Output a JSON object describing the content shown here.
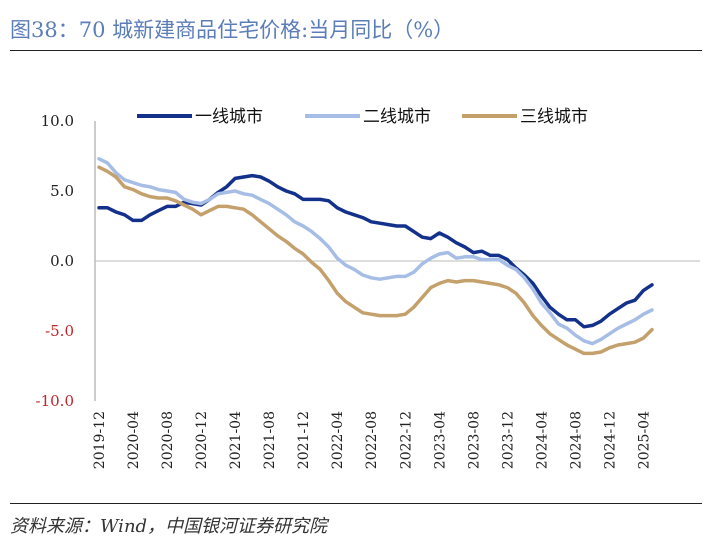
{
  "figure": {
    "title": "图38：70 城新建商品住宅价格:当月同比（%）",
    "source": "资料来源：Wind，中国银河证券研究院"
  },
  "colors": {
    "tier1": "#13318a",
    "tier2": "#a6bde6",
    "tier3": "#c4a06c",
    "negative_tick": "#c0262a"
  },
  "chart_data": {
    "type": "line",
    "ylim": [
      -10,
      10
    ],
    "yticks": [
      "10.0",
      "5.0",
      "0.0",
      "-5.0",
      "-10.0"
    ],
    "ytick_values": [
      10,
      5,
      0,
      -5,
      -10
    ],
    "xticks": [
      "2019-12",
      "2020-04",
      "2020-08",
      "2020-12",
      "2021-04",
      "2021-08",
      "2021-12",
      "2022-04",
      "2022-08",
      "2022-12",
      "2023-04",
      "2023-08",
      "2023-12",
      "2024-04",
      "2024-08",
      "2024-12",
      "2025-04"
    ],
    "legend_position": "top",
    "grid": false,
    "x": [
      "2019-12",
      "2020-01",
      "2020-02",
      "2020-03",
      "2020-04",
      "2020-05",
      "2020-06",
      "2020-07",
      "2020-08",
      "2020-09",
      "2020-10",
      "2020-11",
      "2020-12",
      "2021-01",
      "2021-02",
      "2021-03",
      "2021-04",
      "2021-05",
      "2021-06",
      "2021-07",
      "2021-08",
      "2021-09",
      "2021-10",
      "2021-11",
      "2021-12",
      "2022-01",
      "2022-02",
      "2022-03",
      "2022-04",
      "2022-05",
      "2022-06",
      "2022-07",
      "2022-08",
      "2022-09",
      "2022-10",
      "2022-11",
      "2022-12",
      "2023-01",
      "2023-02",
      "2023-03",
      "2023-04",
      "2023-05",
      "2023-06",
      "2023-07",
      "2023-08",
      "2023-09",
      "2023-10",
      "2023-11",
      "2023-12",
      "2024-01",
      "2024-02",
      "2024-03",
      "2024-04",
      "2024-05",
      "2024-06",
      "2024-07",
      "2024-08",
      "2024-09",
      "2024-10",
      "2024-11",
      "2024-12",
      "2025-01",
      "2025-02",
      "2025-03",
      "2025-04",
      "2025-05"
    ],
    "series": [
      {
        "name": "一线城市",
        "color": "#13318a",
        "values": [
          3.8,
          3.8,
          3.5,
          3.3,
          2.9,
          2.9,
          3.3,
          3.6,
          3.9,
          3.9,
          4.2,
          4.1,
          4.0,
          4.4,
          4.9,
          5.3,
          5.9,
          6.0,
          6.1,
          6.0,
          5.7,
          5.3,
          5.0,
          4.8,
          4.4,
          4.4,
          4.4,
          4.3,
          3.8,
          3.5,
          3.3,
          3.1,
          2.8,
          2.7,
          2.6,
          2.5,
          2.5,
          2.1,
          1.7,
          1.6,
          2.0,
          1.7,
          1.3,
          1.0,
          0.6,
          0.7,
          0.4,
          0.4,
          0.1,
          -0.5,
          -1.0,
          -1.6,
          -2.5,
          -3.3,
          -3.8,
          -4.2,
          -4.2,
          -4.7,
          -4.6,
          -4.3,
          -3.8,
          -3.4,
          -3.0,
          -2.8,
          -2.1,
          -1.7
        ]
      },
      {
        "name": "二线城市",
        "color": "#a6bde6",
        "values": [
          7.3,
          7.0,
          6.3,
          5.8,
          5.6,
          5.4,
          5.3,
          5.1,
          5.0,
          4.9,
          4.4,
          4.2,
          4.1,
          4.4,
          4.8,
          4.9,
          5.0,
          4.8,
          4.7,
          4.4,
          4.1,
          3.7,
          3.3,
          2.8,
          2.5,
          2.1,
          1.6,
          1.0,
          0.2,
          -0.3,
          -0.6,
          -1.0,
          -1.2,
          -1.3,
          -1.2,
          -1.1,
          -1.1,
          -0.8,
          -0.2,
          0.2,
          0.5,
          0.6,
          0.2,
          0.3,
          0.3,
          0.1,
          0.1,
          0.1,
          -0.3,
          -0.6,
          -1.2,
          -2.0,
          -3.0,
          -3.7,
          -4.5,
          -4.8,
          -5.3,
          -5.7,
          -5.9,
          -5.6,
          -5.2,
          -4.8,
          -4.5,
          -4.2,
          -3.8,
          -3.5
        ]
      },
      {
        "name": "三线城市",
        "color": "#c4a06c",
        "values": [
          6.7,
          6.4,
          6.0,
          5.3,
          5.1,
          4.8,
          4.6,
          4.5,
          4.5,
          4.3,
          4.0,
          3.7,
          3.3,
          3.6,
          3.9,
          3.9,
          3.8,
          3.7,
          3.3,
          2.8,
          2.3,
          1.8,
          1.4,
          0.9,
          0.5,
          -0.1,
          -0.6,
          -1.4,
          -2.3,
          -2.9,
          -3.3,
          -3.7,
          -3.8,
          -3.9,
          -3.9,
          -3.9,
          -3.8,
          -3.3,
          -2.6,
          -1.9,
          -1.6,
          -1.4,
          -1.5,
          -1.4,
          -1.4,
          -1.5,
          -1.6,
          -1.7,
          -1.9,
          -2.3,
          -3.0,
          -3.9,
          -4.6,
          -5.2,
          -5.6,
          -6.0,
          -6.3,
          -6.6,
          -6.6,
          -6.5,
          -6.2,
          -6.0,
          -5.9,
          -5.8,
          -5.5,
          -4.9
        ]
      }
    ]
  }
}
